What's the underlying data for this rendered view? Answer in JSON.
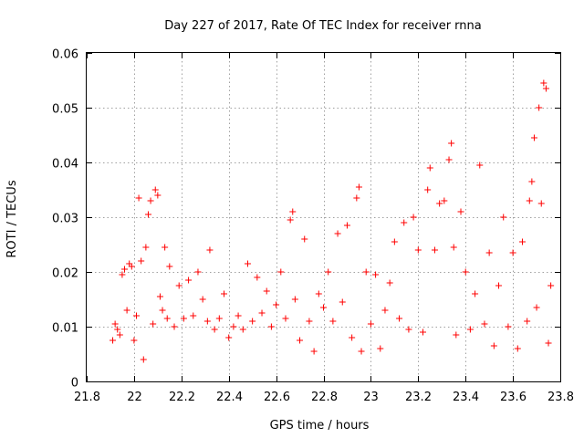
{
  "chart_data": {
    "type": "scatter",
    "title": "Day 227 of 2017, Rate Of TEC Index for receiver rnna",
    "xlabel": "GPS time / hours",
    "ylabel": "ROTI / TECUs",
    "xlim": [
      21.8,
      23.8
    ],
    "ylim": [
      0,
      0.06
    ],
    "xticks": [
      "21.8",
      "22",
      "22.2",
      "22.4",
      "22.6",
      "22.8",
      "23",
      "23.2",
      "23.4",
      "23.6",
      "23.8"
    ],
    "yticks": [
      "0",
      "0.01",
      "0.02",
      "0.03",
      "0.04",
      "0.05",
      "0.06"
    ],
    "grid": true,
    "legend": "none",
    "marker": "+",
    "marker_color": "#ff0000",
    "series": [
      {
        "points": [
          [
            21.91,
            0.0075
          ],
          [
            21.92,
            0.0105
          ],
          [
            21.93,
            0.0095
          ],
          [
            21.94,
            0.0085
          ],
          [
            21.95,
            0.0195
          ],
          [
            21.96,
            0.0205
          ],
          [
            21.97,
            0.013
          ],
          [
            21.98,
            0.0215
          ],
          [
            21.99,
            0.021
          ],
          [
            22.0,
            0.0075
          ],
          [
            22.01,
            0.012
          ],
          [
            22.02,
            0.0335
          ],
          [
            22.03,
            0.022
          ],
          [
            22.04,
            0.004
          ],
          [
            22.05,
            0.0245
          ],
          [
            22.06,
            0.0305
          ],
          [
            22.07,
            0.033
          ],
          [
            22.08,
            0.0105
          ],
          [
            22.09,
            0.035
          ],
          [
            22.1,
            0.034
          ],
          [
            22.11,
            0.0155
          ],
          [
            22.12,
            0.013
          ],
          [
            22.13,
            0.0245
          ],
          [
            22.14,
            0.0115
          ],
          [
            22.15,
            0.021
          ],
          [
            22.17,
            0.01
          ],
          [
            22.19,
            0.0175
          ],
          [
            22.21,
            0.0115
          ],
          [
            22.23,
            0.0185
          ],
          [
            22.25,
            0.012
          ],
          [
            22.27,
            0.02
          ],
          [
            22.29,
            0.015
          ],
          [
            22.31,
            0.011
          ],
          [
            22.32,
            0.024
          ],
          [
            22.34,
            0.0095
          ],
          [
            22.36,
            0.0115
          ],
          [
            22.38,
            0.016
          ],
          [
            22.4,
            0.008
          ],
          [
            22.42,
            0.01
          ],
          [
            22.44,
            0.012
          ],
          [
            22.46,
            0.0095
          ],
          [
            22.48,
            0.0215
          ],
          [
            22.5,
            0.011
          ],
          [
            22.52,
            0.019
          ],
          [
            22.54,
            0.0125
          ],
          [
            22.56,
            0.0165
          ],
          [
            22.58,
            0.01
          ],
          [
            22.6,
            0.014
          ],
          [
            22.62,
            0.02
          ],
          [
            22.64,
            0.0115
          ],
          [
            22.66,
            0.0295
          ],
          [
            22.67,
            0.031
          ],
          [
            22.68,
            0.015
          ],
          [
            22.7,
            0.0075
          ],
          [
            22.72,
            0.026
          ],
          [
            22.74,
            0.011
          ],
          [
            22.76,
            0.0055
          ],
          [
            22.78,
            0.016
          ],
          [
            22.8,
            0.0135
          ],
          [
            22.82,
            0.02
          ],
          [
            22.84,
            0.011
          ],
          [
            22.86,
            0.027
          ],
          [
            22.88,
            0.0145
          ],
          [
            22.9,
            0.0285
          ],
          [
            22.92,
            0.008
          ],
          [
            22.94,
            0.0335
          ],
          [
            22.95,
            0.0355
          ],
          [
            22.96,
            0.0055
          ],
          [
            22.98,
            0.02
          ],
          [
            23.0,
            0.0105
          ],
          [
            23.02,
            0.0195
          ],
          [
            23.04,
            0.006
          ],
          [
            23.06,
            0.013
          ],
          [
            23.08,
            0.018
          ],
          [
            23.1,
            0.0255
          ],
          [
            23.12,
            0.0115
          ],
          [
            23.14,
            0.029
          ],
          [
            23.16,
            0.0095
          ],
          [
            23.18,
            0.03
          ],
          [
            23.2,
            0.024
          ],
          [
            23.22,
            0.009
          ],
          [
            23.24,
            0.035
          ],
          [
            23.25,
            0.039
          ],
          [
            23.27,
            0.024
          ],
          [
            23.29,
            0.0325
          ],
          [
            23.31,
            0.033
          ],
          [
            23.33,
            0.0405
          ],
          [
            23.34,
            0.0435
          ],
          [
            23.35,
            0.0245
          ],
          [
            23.36,
            0.0085
          ],
          [
            23.38,
            0.031
          ],
          [
            23.4,
            0.02
          ],
          [
            23.42,
            0.0095
          ],
          [
            23.44,
            0.016
          ],
          [
            23.46,
            0.0395
          ],
          [
            23.48,
            0.0105
          ],
          [
            23.5,
            0.0235
          ],
          [
            23.52,
            0.0065
          ],
          [
            23.54,
            0.0175
          ],
          [
            23.56,
            0.03
          ],
          [
            23.58,
            0.01
          ],
          [
            23.6,
            0.0235
          ],
          [
            23.62,
            0.006
          ],
          [
            23.64,
            0.0255
          ],
          [
            23.66,
            0.011
          ],
          [
            23.67,
            0.033
          ],
          [
            23.68,
            0.0365
          ],
          [
            23.69,
            0.0445
          ],
          [
            23.7,
            0.0135
          ],
          [
            23.71,
            0.05
          ],
          [
            23.72,
            0.0325
          ],
          [
            23.73,
            0.0545
          ],
          [
            23.74,
            0.0535
          ],
          [
            23.75,
            0.007
          ],
          [
            23.76,
            0.0175
          ]
        ]
      }
    ]
  }
}
